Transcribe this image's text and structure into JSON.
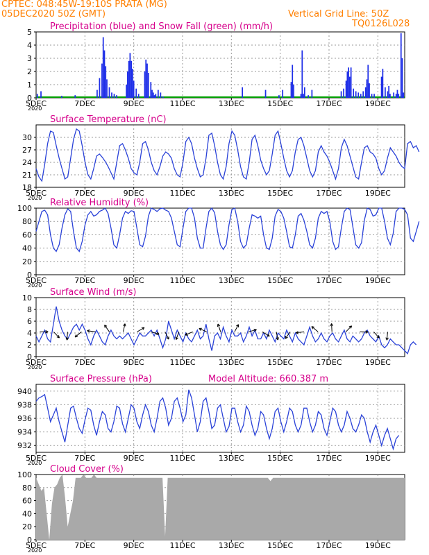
{
  "header": {
    "line1": "CPTEC:   048:45W-19:10S   PRATA (MG)",
    "line2": "05DEC2020 50Z (GMT)",
    "grid_note": "Vertical Grid Line: 50Z",
    "code": "TQ0126L028"
  },
  "x_tick_labels": [
    "5DEC",
    "7DEC",
    "9DEC",
    "11DEC",
    "13DEC",
    "15DEC",
    "17DEC",
    "19DEC"
  ],
  "x_tick_positions": [
    0,
    2,
    4,
    6,
    8,
    10,
    12,
    14
  ],
  "x_range": [
    0,
    15.1
  ],
  "year_label": "2020",
  "colors": {
    "title": "#d6008b",
    "series": "#2a42d8",
    "precip": "#1f2fe8",
    "snow": "#00a000",
    "cloud": "#a9a9a9",
    "header": "#ff7f00",
    "grid": "#9a9a9a"
  },
  "chart_data": [
    {
      "type": "bar",
      "title": "Precipitation (blue) and Snow Fall (green) (mm/h)",
      "ylim": [
        0,
        5
      ],
      "yticks": [
        0,
        1,
        2,
        3,
        4,
        5
      ],
      "series": [
        {
          "name": "Precipitation",
          "points": [
            [
              0.05,
              0.3
            ],
            [
              0.2,
              0.5
            ],
            [
              1.05,
              0.15
            ],
            [
              1.6,
              0.2
            ],
            [
              2.5,
              0.6
            ],
            [
              2.6,
              1.5
            ],
            [
              2.7,
              2.6
            ],
            [
              2.75,
              4.6
            ],
            [
              2.8,
              3.6
            ],
            [
              2.85,
              2.4
            ],
            [
              2.9,
              1.4
            ],
            [
              3.0,
              0.8
            ],
            [
              3.1,
              0.4
            ],
            [
              3.2,
              0.3
            ],
            [
              3.3,
              0.2
            ],
            [
              3.7,
              1.0
            ],
            [
              3.75,
              2.0
            ],
            [
              3.8,
              2.8
            ],
            [
              3.85,
              3.4
            ],
            [
              3.9,
              2.8
            ],
            [
              3.95,
              2.2
            ],
            [
              4.0,
              1.3
            ],
            [
              4.1,
              0.7
            ],
            [
              4.2,
              0.3
            ],
            [
              4.45,
              2.0
            ],
            [
              4.5,
              2.9
            ],
            [
              4.55,
              2.6
            ],
            [
              4.6,
              1.9
            ],
            [
              4.7,
              1.2
            ],
            [
              4.75,
              0.6
            ],
            [
              4.8,
              0.4
            ],
            [
              4.85,
              0.2
            ],
            [
              4.9,
              0.3
            ],
            [
              5.0,
              0.6
            ],
            [
              5.1,
              0.4
            ],
            [
              5.2,
              0.1
            ],
            [
              8.45,
              0.8
            ],
            [
              9.4,
              0.6
            ],
            [
              9.95,
              0.2
            ],
            [
              10.1,
              0.6
            ],
            [
              10.45,
              1.2
            ],
            [
              10.5,
              2.5
            ],
            [
              10.55,
              1.0
            ],
            [
              10.85,
              0.3
            ],
            [
              10.9,
              3.6
            ],
            [
              10.95,
              0.3
            ],
            [
              11.0,
              0.8
            ],
            [
              11.15,
              0.2
            ],
            [
              11.3,
              0.6
            ],
            [
              12.5,
              0.5
            ],
            [
              12.6,
              0.7
            ],
            [
              12.7,
              1.3
            ],
            [
              12.75,
              2.0
            ],
            [
              12.8,
              2.3
            ],
            [
              12.85,
              1.6
            ],
            [
              12.9,
              2.3
            ],
            [
              13.0,
              0.7
            ],
            [
              13.1,
              0.5
            ],
            [
              13.2,
              0.4
            ],
            [
              13.3,
              0.3
            ],
            [
              13.4,
              0.5
            ],
            [
              13.5,
              0.8
            ],
            [
              13.55,
              1.4
            ],
            [
              13.6,
              2.5
            ],
            [
              13.65,
              1.1
            ],
            [
              13.75,
              0.3
            ],
            [
              13.85,
              0.3
            ],
            [
              14.15,
              1.6
            ],
            [
              14.2,
              2.2
            ],
            [
              14.3,
              0.8
            ],
            [
              14.4,
              0.5
            ],
            [
              14.45,
              0.9
            ],
            [
              14.5,
              0.3
            ],
            [
              14.65,
              0.4
            ],
            [
              14.75,
              0.3
            ],
            [
              14.8,
              0.6
            ],
            [
              14.85,
              0.3
            ],
            [
              14.95,
              4.9
            ],
            [
              15.0,
              3.0
            ],
            [
              15.05,
              0.4
            ]
          ]
        },
        {
          "name": "Snow Fall",
          "value": 0
        }
      ]
    },
    {
      "type": "line",
      "title": "Surface Temperature (nC)",
      "ylim": [
        18,
        33
      ],
      "yticks": [
        18,
        21,
        24,
        27,
        30
      ],
      "y": [
        22.5,
        20.5,
        19.5,
        23.5,
        28.5,
        31.5,
        31.2,
        28.0,
        25.0,
        22.5,
        20.0,
        20.5,
        25.0,
        29.5,
        32.0,
        31.5,
        28.0,
        24.0,
        21.0,
        20.0,
        22.5,
        25.5,
        26.0,
        25.2,
        24.2,
        23.0,
        21.5,
        20.0,
        24.0,
        28.0,
        28.5,
        27.0,
        25.0,
        22.5,
        21.5,
        21.0,
        24.0,
        28.5,
        29.0,
        27.0,
        24.0,
        22.0,
        21.0,
        23.0,
        25.5,
        26.5,
        26.0,
        25.0,
        22.5,
        21.0,
        20.5,
        24.0,
        29.0,
        30.0,
        28.5,
        25.0,
        22.5,
        20.5,
        21.0,
        25.0,
        30.5,
        31.0,
        28.0,
        24.0,
        21.0,
        20.0,
        23.0,
        28.5,
        31.5,
        30.5,
        27.0,
        23.0,
        20.5,
        20.0,
        24.0,
        29.5,
        30.5,
        28.0,
        24.5,
        22.5,
        21.0,
        22.0,
        26.0,
        30.5,
        31.5,
        28.5,
        25.0,
        22.0,
        20.5,
        22.0,
        26.5,
        29.5,
        30.0,
        28.0,
        25.0,
        22.0,
        20.5,
        22.0,
        26.5,
        28.0,
        26.5,
        25.5,
        24.0,
        22.0,
        20.0,
        22.5,
        27.5,
        29.5,
        28.0,
        25.5,
        23.0,
        20.5,
        20.0,
        24.0,
        27.5,
        28.0,
        26.5,
        26.0,
        25.0,
        22.5,
        21.0,
        22.0,
        25.0,
        27.5,
        26.5,
        25.5,
        24.0,
        23.0,
        22.5,
        28.5,
        29.0,
        27.5,
        28.0,
        26.5
      ]
    },
    {
      "type": "line",
      "title": "Relative Humidity (%)",
      "ylim": [
        0,
        100
      ],
      "yticks": [
        0,
        20,
        40,
        60,
        80,
        100
      ],
      "y": [
        65,
        80,
        95,
        97,
        90,
        60,
        40,
        35,
        45,
        70,
        90,
        99,
        95,
        65,
        40,
        35,
        50,
        75,
        90,
        95,
        88,
        90,
        95,
        97,
        100,
        92,
        70,
        45,
        40,
        60,
        85,
        95,
        92,
        96,
        95,
        70,
        45,
        42,
        58,
        88,
        100,
        98,
        95,
        99,
        100,
        97,
        95,
        85,
        65,
        45,
        42,
        70,
        95,
        100,
        100,
        85,
        55,
        40,
        40,
        70,
        95,
        100,
        93,
        65,
        45,
        38,
        45,
        75,
        98,
        100,
        80,
        50,
        40,
        45,
        70,
        90,
        88,
        85,
        88,
        60,
        40,
        38,
        55,
        88,
        98,
        95,
        85,
        65,
        42,
        40,
        60,
        88,
        92,
        82,
        65,
        45,
        40,
        55,
        85,
        95,
        92,
        95,
        80,
        50,
        38,
        42,
        70,
        95,
        100,
        98,
        72,
        45,
        40,
        48,
        82,
        100,
        98,
        88,
        90,
        100,
        100,
        80,
        55,
        45,
        62,
        95,
        100,
        100,
        98,
        90,
        55,
        50,
        65,
        80
      ]
    },
    {
      "type": "line",
      "title": "Surface Wind (m/s)",
      "ylim": [
        0,
        10
      ],
      "yticks": [
        0,
        2,
        4,
        6,
        8,
        10
      ],
      "y": [
        3.5,
        2.5,
        3.5,
        4.5,
        3.0,
        2.5,
        5.5,
        8.5,
        6.0,
        4.5,
        3.5,
        3.0,
        4.0,
        5.0,
        5.5,
        4.5,
        5.5,
        4.5,
        3.0,
        2.0,
        3.5,
        4.5,
        3.5,
        2.5,
        2.0,
        3.5,
        4.5,
        3.5,
        3.0,
        3.5,
        3.0,
        3.5,
        4.0,
        3.0,
        2.0,
        3.0,
        4.0,
        3.5,
        3.5,
        4.0,
        4.5,
        3.5,
        4.5,
        3.0,
        1.5,
        3.0,
        6.0,
        4.5,
        3.0,
        4.5,
        3.5,
        2.5,
        4.0,
        3.0,
        2.5,
        3.5,
        4.5,
        3.0,
        3.5,
        5.5,
        3.0,
        1.0,
        3.5,
        4.0,
        3.0,
        5.0,
        3.5,
        2.5,
        4.5,
        3.5,
        3.5,
        4.0,
        2.5,
        3.5,
        5.0,
        3.5,
        4.5,
        3.0,
        3.0,
        4.0,
        3.0,
        4.5,
        3.5,
        2.5,
        4.0,
        3.5,
        3.0,
        4.5,
        3.5,
        2.5,
        4.0,
        3.0,
        2.5,
        2.0,
        3.5,
        5.0,
        3.5,
        2.5,
        3.0,
        4.0,
        3.0,
        2.5,
        3.5,
        4.0,
        3.0,
        2.5,
        3.5,
        4.5,
        3.0,
        2.5,
        3.5,
        3.0,
        2.5,
        3.0,
        4.0,
        4.5,
        3.5,
        3.0,
        2.5,
        3.5,
        2.0,
        1.5,
        2.0,
        3.0,
        2.5,
        2.0,
        2.0,
        1.5,
        1.0,
        0.5,
        2.0,
        2.5,
        2.0
      ]
    },
    {
      "type": "line",
      "title": "Surface Pressure (hPa)",
      "annotation": "Model Altitude: 660.387 m",
      "ylim": [
        931,
        941
      ],
      "yticks": [
        932,
        934,
        936,
        938,
        940
      ],
      "y": [
        938.5,
        939.0,
        939.2,
        939.5,
        937.5,
        935.5,
        936.5,
        937.5,
        935.5,
        934.0,
        932.5,
        935.0,
        937.5,
        937.8,
        936.0,
        934.5,
        933.8,
        935.8,
        937.5,
        937.2,
        935.0,
        933.5,
        935.5,
        937.0,
        936.5,
        934.5,
        934.0,
        935.5,
        937.8,
        937.5,
        935.2,
        934.0,
        936.0,
        938.0,
        937.5,
        935.5,
        934.5,
        936.5,
        938.0,
        937.0,
        935.0,
        934.0,
        936.0,
        938.5,
        939.0,
        937.5,
        935.0,
        936.0,
        938.5,
        939.0,
        937.5,
        935.5,
        936.5,
        940.2,
        939.0,
        936.5,
        934.0,
        935.5,
        938.5,
        939.0,
        937.0,
        934.5,
        935.0,
        937.5,
        938.0,
        936.0,
        934.0,
        934.8,
        937.5,
        937.5,
        935.5,
        934.0,
        935.0,
        937.8,
        937.0,
        935.0,
        933.5,
        934.5,
        937.0,
        936.5,
        934.5,
        933.0,
        934.5,
        937.0,
        937.5,
        935.5,
        934.0,
        935.5,
        937.5,
        937.0,
        935.0,
        934.0,
        935.0,
        937.5,
        937.5,
        935.5,
        934.0,
        935.0,
        937.0,
        936.5,
        934.5,
        933.5,
        935.5,
        937.5,
        937.0,
        935.0,
        934.0,
        935.0,
        937.0,
        936.0,
        934.5,
        934.0,
        935.0,
        936.5,
        936.0,
        934.0,
        932.5,
        934.0,
        935.0,
        933.5,
        932.0,
        933.5,
        934.5,
        933.0,
        931.5,
        933.0,
        933.5
      ]
    },
    {
      "type": "area",
      "title": "Cloud Cover (%)",
      "ylim": [
        0,
        100
      ],
      "yticks": [
        0,
        20,
        40,
        60,
        80,
        100
      ],
      "y": [
        95,
        85,
        75,
        80,
        40,
        0,
        55,
        80,
        85,
        95,
        100,
        65,
        20,
        40,
        60,
        95,
        95,
        95,
        100,
        95,
        95,
        95,
        100,
        95,
        95,
        95,
        95,
        95,
        95,
        95,
        95,
        95,
        95,
        95,
        95,
        95,
        95,
        95,
        95,
        95,
        95,
        95,
        95,
        95,
        95,
        95,
        95,
        95,
        95,
        5,
        95,
        95,
        95,
        95,
        95,
        95,
        95,
        95,
        95,
        95,
        95,
        95,
        95,
        95,
        95,
        95,
        95,
        95,
        95,
        95,
        95,
        95,
        95,
        95,
        95,
        95,
        95,
        95,
        95,
        95,
        95,
        95,
        95,
        95,
        95,
        95,
        95,
        95,
        95,
        90,
        95,
        95,
        95,
        95,
        95,
        95,
        95,
        95,
        95,
        95,
        95,
        95,
        95,
        95,
        95,
        95,
        95,
        95,
        95,
        95,
        95,
        95,
        95,
        95,
        95,
        95,
        95,
        95,
        95,
        95,
        95,
        95,
        95,
        95,
        95,
        95,
        95,
        95,
        95,
        95,
        95,
        95,
        95,
        95,
        95,
        95,
        95,
        95,
        95,
        95,
        95
      ]
    }
  ]
}
